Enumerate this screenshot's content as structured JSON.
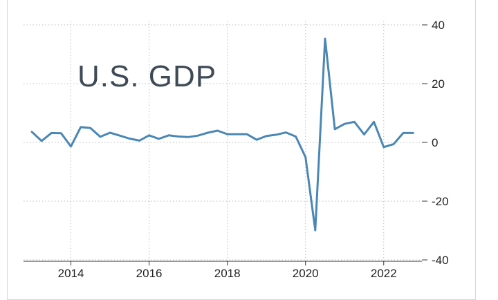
{
  "chart_data": {
    "type": "line",
    "title": "U.S. GDP",
    "xlabel": "",
    "ylabel": "",
    "ylim": [
      -40,
      40
    ],
    "xlim": [
      2013.0,
      2022.8
    ],
    "grid": true,
    "y_axis_side": "right",
    "y_ticks": [
      40,
      20,
      0,
      -20,
      -40
    ],
    "x_ticks": [
      2014,
      2016,
      2018,
      2020,
      2022
    ],
    "x": [
      2013.0,
      2013.25,
      2013.5,
      2013.75,
      2014.0,
      2014.25,
      2014.5,
      2014.75,
      2015.0,
      2015.25,
      2015.5,
      2015.75,
      2016.0,
      2016.25,
      2016.5,
      2016.75,
      2017.0,
      2017.25,
      2017.5,
      2017.75,
      2018.0,
      2018.25,
      2018.5,
      2018.75,
      2019.0,
      2019.25,
      2019.5,
      2019.75,
      2020.0,
      2020.25,
      2020.5,
      2020.75,
      2021.0,
      2021.25,
      2021.5,
      2021.75,
      2022.0,
      2022.25,
      2022.5,
      2022.75
    ],
    "values": [
      3.6,
      0.5,
      3.2,
      3.1,
      -1.4,
      5.2,
      4.9,
      1.9,
      3.3,
      2.3,
      1.3,
      0.6,
      2.4,
      1.2,
      2.4,
      2.0,
      1.8,
      2.3,
      3.3,
      4.0,
      2.8,
      2.8,
      2.8,
      0.9,
      2.2,
      2.6,
      3.4,
      2.0,
      -5.0,
      -29.9,
      35.3,
      4.5,
      6.3,
      7.0,
      2.7,
      7.0,
      -1.6,
      -0.6,
      3.2,
      3.2
    ],
    "line_color": "#4a87b5",
    "grid_color": "#bcbcbc"
  }
}
